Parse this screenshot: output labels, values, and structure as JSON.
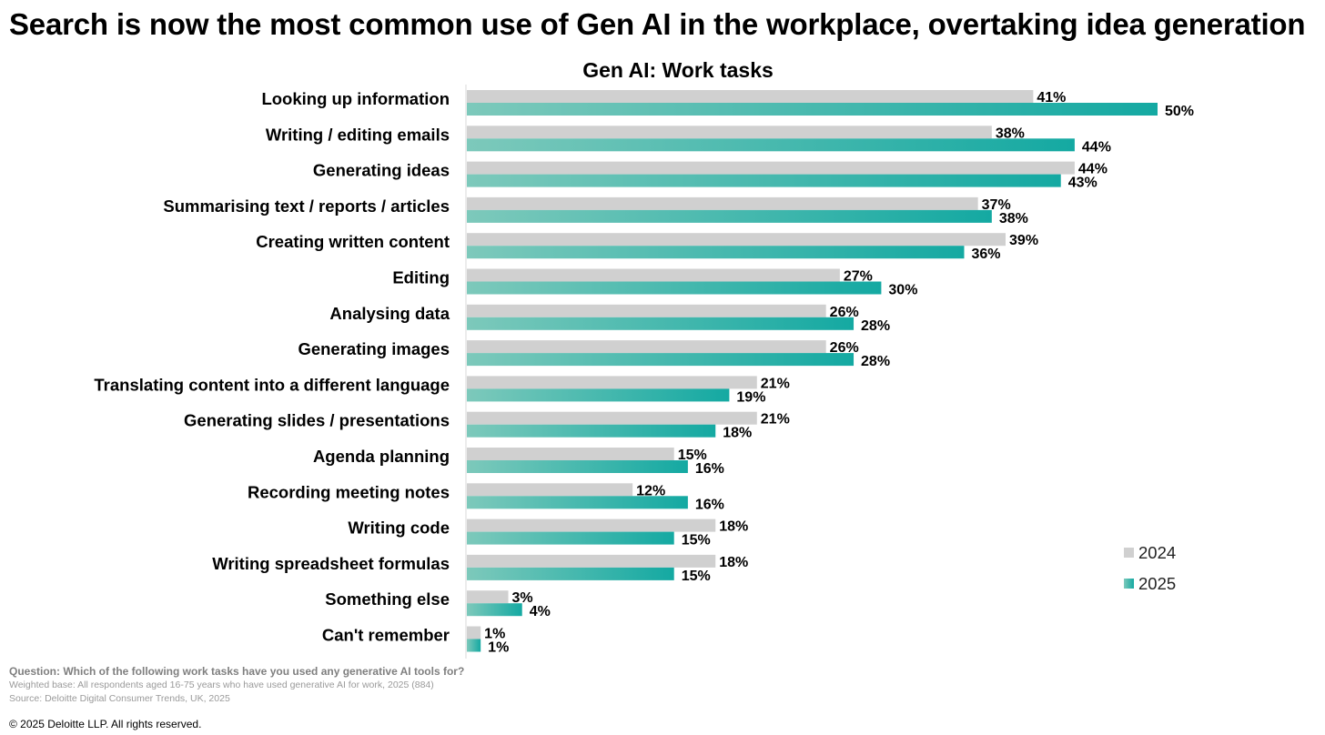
{
  "headline": "Search is now the most common use of Gen AI in the workplace, overtaking idea generation",
  "chart_data": {
    "type": "bar",
    "orientation": "horizontal",
    "title": "Gen AI: Work tasks",
    "categories": [
      "Looking up information",
      "Writing / editing emails",
      "Generating ideas",
      "Summarising text / reports / articles",
      "Creating written content",
      "Editing",
      "Analysing data",
      "Generating images",
      "Translating content into a different language",
      "Generating slides / presentations",
      "Agenda planning",
      "Recording meeting notes",
      "Writing code",
      "Writing spreadsheet formulas",
      "Something else",
      "Can't remember"
    ],
    "series": [
      {
        "name": "2024",
        "color": "#d0d0d0",
        "values": [
          41,
          38,
          44,
          37,
          39,
          27,
          26,
          26,
          21,
          21,
          15,
          12,
          18,
          18,
          3,
          1
        ]
      },
      {
        "name": "2025",
        "color": "#14a9a2",
        "gradient_start": "#7dc9bb",
        "values": [
          50,
          44,
          43,
          38,
          36,
          30,
          28,
          28,
          19,
          18,
          16,
          16,
          15,
          15,
          4,
          1
        ]
      }
    ],
    "value_suffix": "%",
    "xlim": [
      0,
      50
    ],
    "legend_position": "bottom-right",
    "grid": false,
    "axes_visible": false
  },
  "footnotes": {
    "question": "Question: Which of the following work tasks have you used any generative AI tools for?",
    "base": "Weighted base: All respondents aged 16-75 years who have used generative AI for work, 2025 (884)",
    "source": "Source: Deloitte Digital Consumer Trends, UK, 2025"
  },
  "copyright": "© 2025 Deloitte LLP. All rights reserved."
}
